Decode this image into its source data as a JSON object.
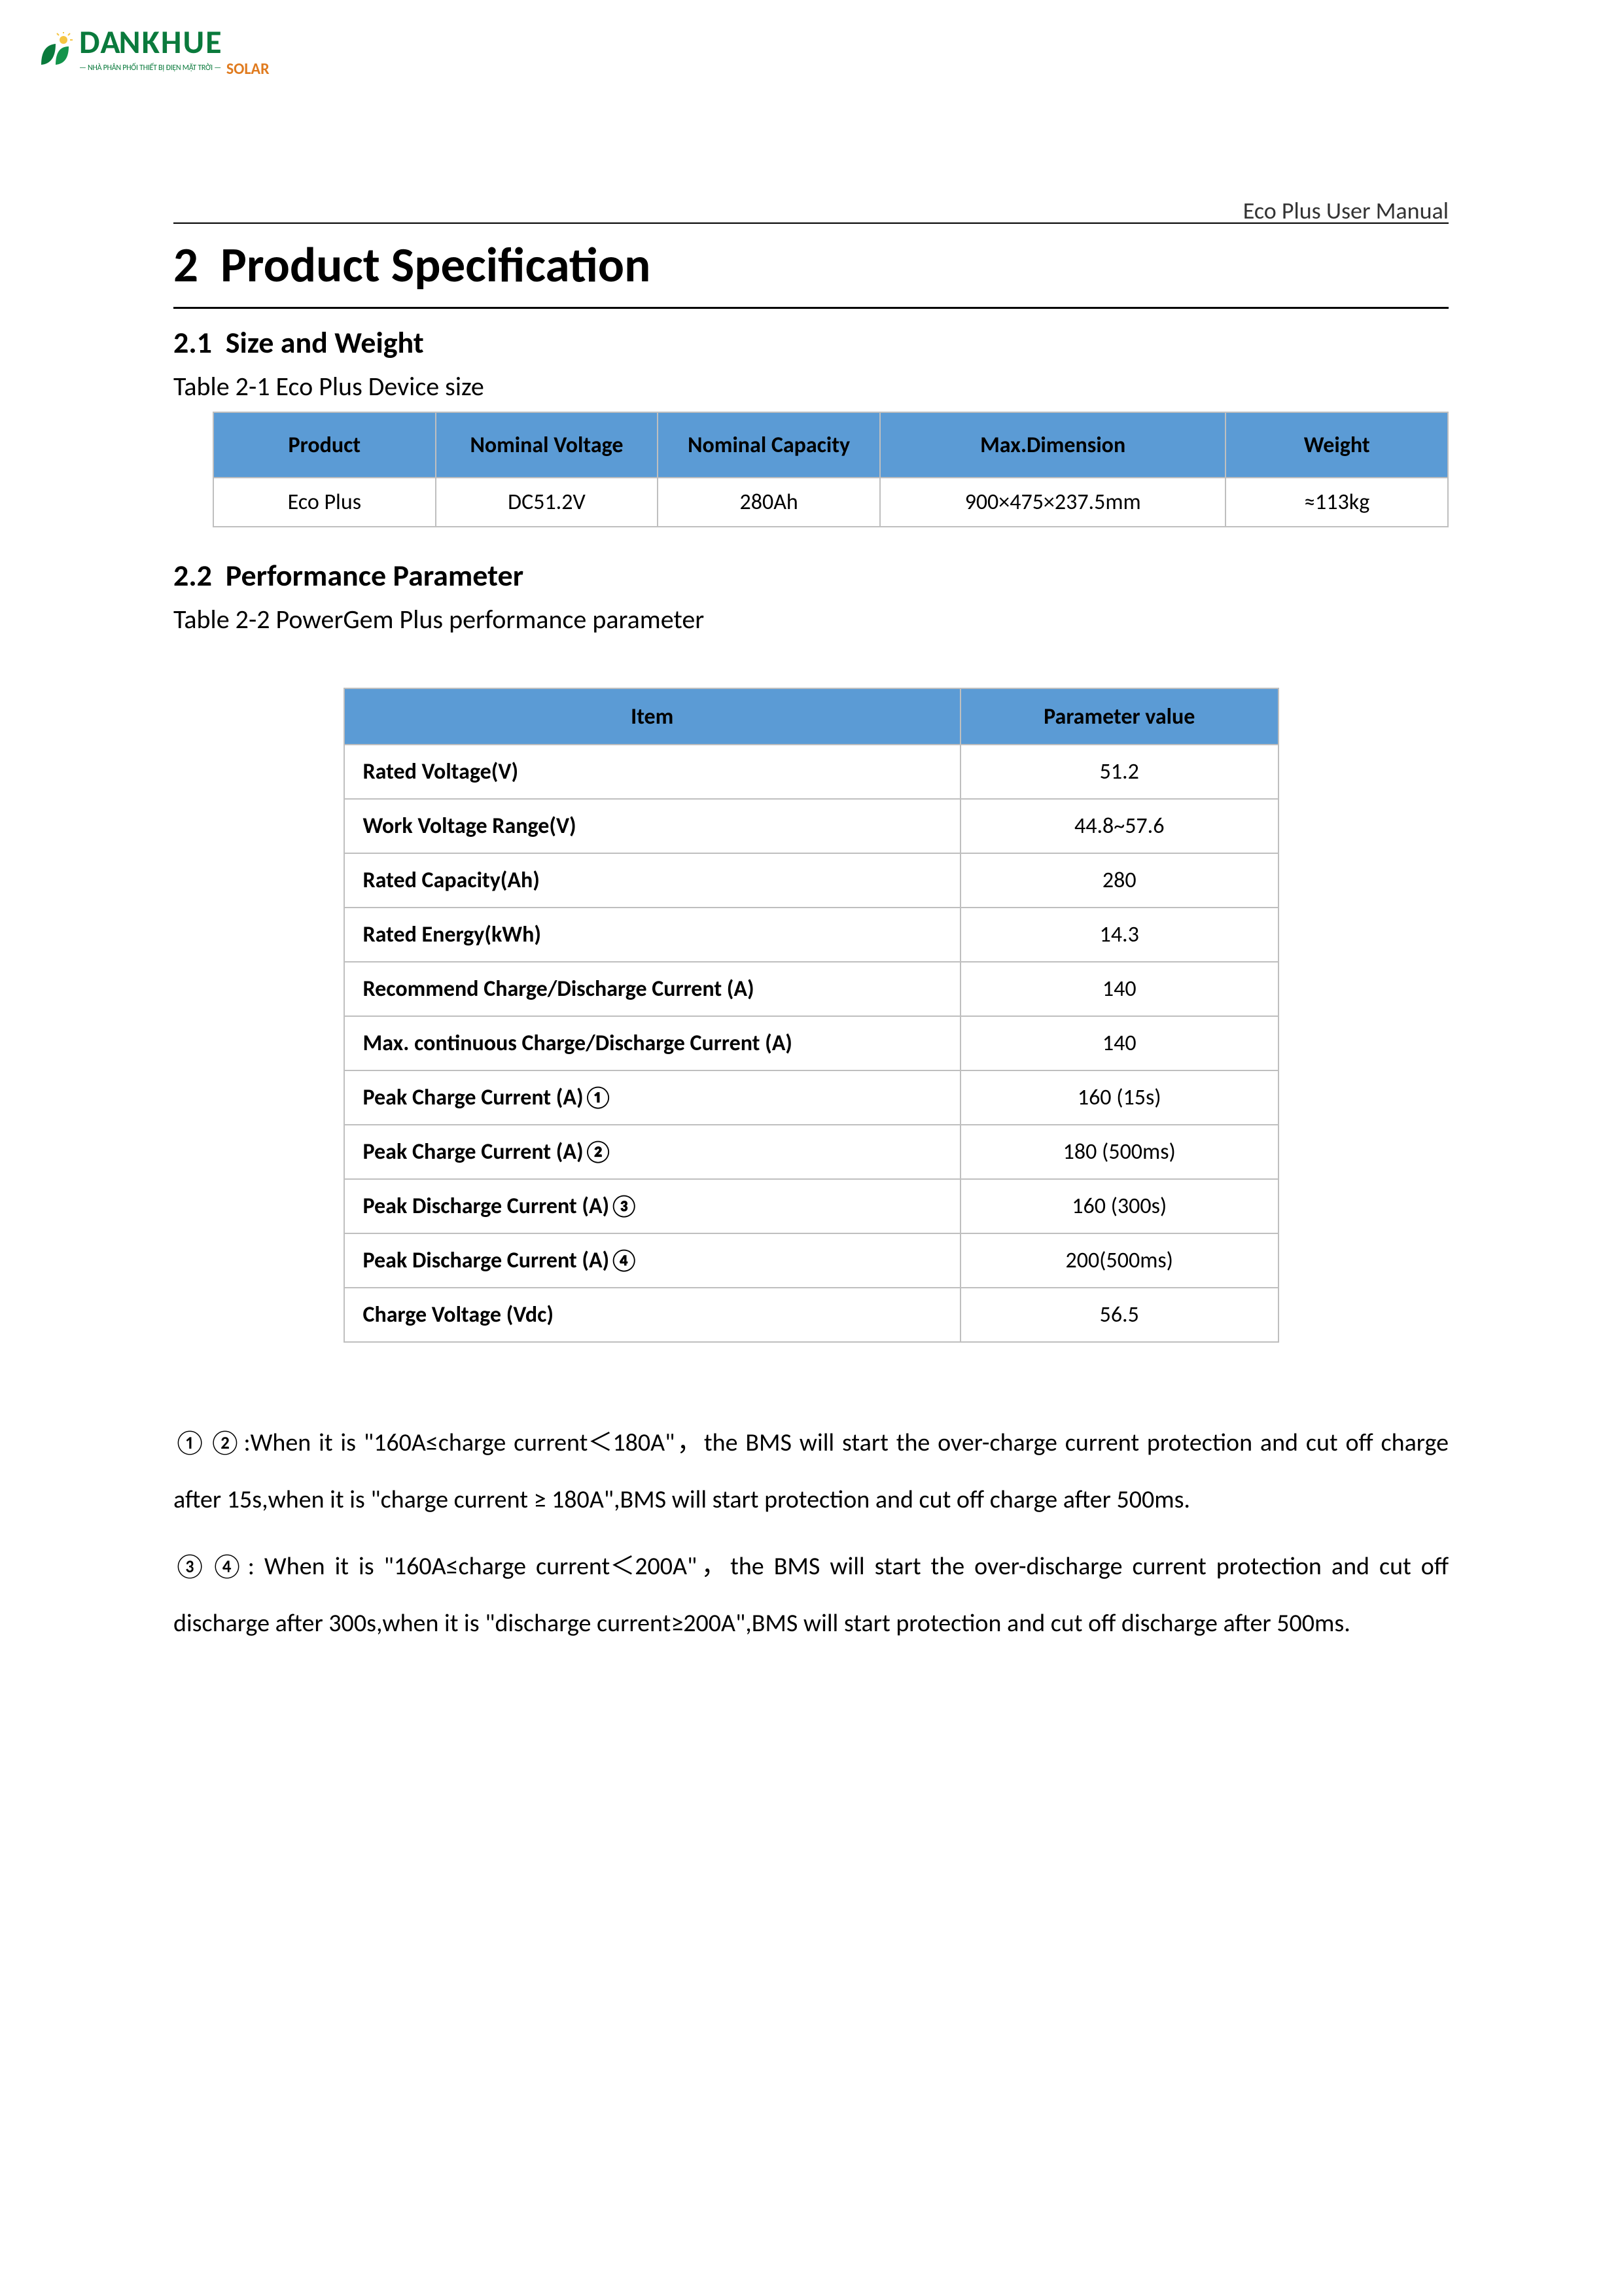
{
  "logo": {
    "brand_first": "DA",
    "brand_rest": "NKHUE",
    "sub": "SOLAR",
    "tagline": "— NHÀ PHÂN PHỐI THIẾT BỊ ĐIỆN MẶT TRỜI —",
    "green": "#0a7a3c",
    "orange": "#e07b1f"
  },
  "header_right": "Eco Plus User Manual",
  "section": {
    "number": "2",
    "title": "Product Specification"
  },
  "sub1": {
    "number": "2.1",
    "title": "Size and Weight",
    "table_caption": "Table 2-1 Eco Plus Device size"
  },
  "size_table": {
    "header_bg": "#5b9bd5",
    "border_color": "#bfbfbf",
    "columns": [
      "Product",
      "Nominal Voltage",
      "Nominal Capacity",
      "Max.Dimension",
      "Weight"
    ],
    "col_widths_pct": [
      18,
      18,
      18,
      28,
      18
    ],
    "rows": [
      [
        "Eco Plus",
        "DC51.2V",
        "280Ah",
        "900×475×237.5mm",
        "≈113kg"
      ]
    ]
  },
  "sub2": {
    "number": "2.2",
    "title": "Performance Parameter",
    "table_caption": "Table 2-2 PowerGem Plus performance parameter"
  },
  "perf_table": {
    "header_bg": "#5b9bd5",
    "border_color": "#bfbfbf",
    "columns": [
      "Item",
      "Parameter value"
    ],
    "rows": [
      {
        "item": "Rated Voltage(V)",
        "value": "51.2"
      },
      {
        "item": "Work Voltage Range(V)",
        "value": "44.8~57.6"
      },
      {
        "item": "Rated Capacity(Ah)",
        "value": "280"
      },
      {
        "item": "Rated Energy(kWh)",
        "value": "14.3"
      },
      {
        "item": "Recommend Charge/Discharge Current (A)",
        "value": "140"
      },
      {
        "item": "Max. continuous Charge/Discharge Current (A)",
        "value": "140"
      },
      {
        "item": "Peak Charge Current (A)①",
        "value": "160 (15s)"
      },
      {
        "item": "Peak Charge Current (A)②",
        "value": "180 (500ms)"
      },
      {
        "item": "Peak Discharge Current (A)③",
        "value": "160 (300s)"
      },
      {
        "item": "Peak Discharge Current (A)④",
        "value": "200(500ms)"
      },
      {
        "item": "Charge Voltage (Vdc)",
        "value": "56.5"
      }
    ]
  },
  "notes": {
    "p1": "①②:When it is \"160A≤charge current＜180A\"，the BMS will start the over-charge current protection and cut off charge after 15s,when it is \"charge current ≥ 180A\",BMS will start protection and cut off charge after 500ms.",
    "p2": "③④: When it is \"160A≤charge current＜200A\"，the BMS will start the over-discharge current protection and cut off discharge after 300s,when it is \"discharge current≥200A\",BMS will start protection and cut off discharge after 500ms."
  },
  "styles": {
    "page_bg": "#ffffff",
    "text_color": "#000000",
    "h1_fontsize": 75,
    "h2_fontsize": 46,
    "body_fontsize": 38,
    "table_fontsize": 34
  }
}
